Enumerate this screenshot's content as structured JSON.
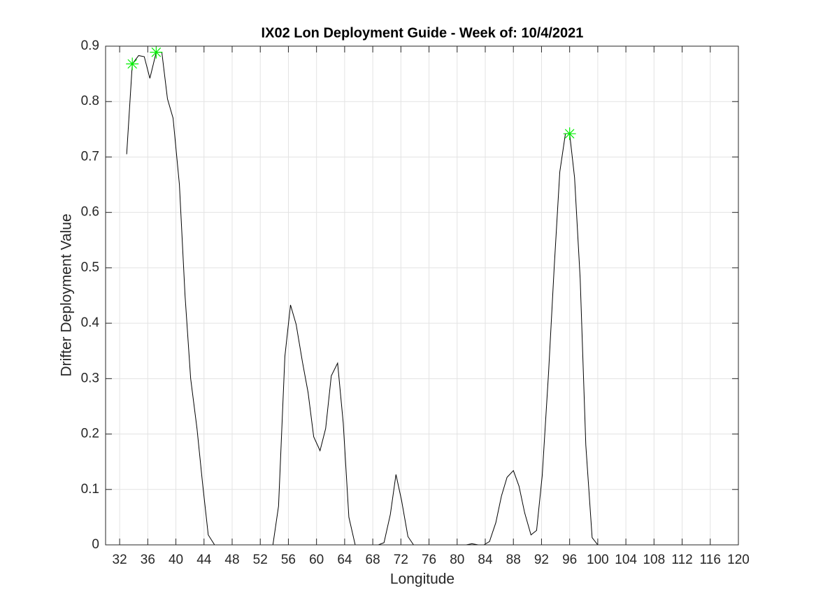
{
  "chart_data": {
    "type": "line",
    "title": "IX02 Lon Deployment Guide - Week of: 10/4/2021",
    "x_label": "Longitude",
    "y_label": "Drifter Deployment Value",
    "x": [
      33.0,
      33.8,
      34.7,
      35.5,
      36.3,
      37.2,
      38.0,
      38.8,
      39.6,
      40.5,
      41.3,
      42.1,
      43.0,
      43.8,
      44.6,
      45.5,
      53.8,
      54.6,
      55.5,
      56.3,
      57.1,
      58.0,
      58.8,
      59.6,
      60.5,
      61.3,
      62.1,
      63.0,
      63.8,
      64.6,
      65.5,
      68.8,
      69.6,
      70.5,
      71.3,
      72.1,
      73.0,
      73.8,
      81.3,
      82.1,
      83.0,
      83.8,
      84.6,
      85.5,
      86.3,
      87.1,
      88.0,
      88.8,
      89.6,
      90.5,
      91.3,
      92.1,
      93.0,
      93.8,
      94.6,
      95.4,
      96.0,
      96.7,
      97.5,
      98.3,
      99.2,
      100.0,
      114.7
    ],
    "series": [
      {
        "color": "#000000",
        "values": [
          0.705,
          0.868,
          0.883,
          0.881,
          0.842,
          0.889,
          0.889,
          0.805,
          0.77,
          0.65,
          0.45,
          0.3,
          0.21,
          0.11,
          0.018,
          0,
          0,
          0.07,
          0.34,
          0.433,
          0.398,
          0.33,
          0.275,
          0.195,
          0.17,
          0.21,
          0.305,
          0.328,
          0.22,
          0.05,
          0,
          0,
          0.004,
          0.055,
          0.127,
          0.08,
          0.015,
          0,
          0,
          0.002,
          0,
          0,
          0.006,
          0.04,
          0.088,
          0.122,
          0.134,
          0.106,
          0.058,
          0.018,
          0.026,
          0.125,
          0.31,
          0.5,
          0.673,
          0.742,
          0.742,
          0.663,
          0.48,
          0.18,
          0.013,
          0,
          0
        ]
      }
    ],
    "markers": {
      "color": "#00ee00",
      "x": [
        33.8,
        37.2,
        96.0
      ],
      "values": [
        0.868,
        0.889,
        0.742
      ]
    },
    "xlim": [
      30,
      120
    ],
    "xticks": [
      32,
      36,
      40,
      44,
      48,
      52,
      56,
      60,
      64,
      68,
      72,
      76,
      80,
      84,
      88,
      92,
      96,
      100,
      104,
      108,
      112,
      116,
      120
    ],
    "ylim": [
      0,
      0.9
    ],
    "yticks": [
      0,
      0.1,
      0.2,
      0.3,
      0.4,
      0.5,
      0.6,
      0.7,
      0.8,
      0.9
    ],
    "grid": true
  }
}
